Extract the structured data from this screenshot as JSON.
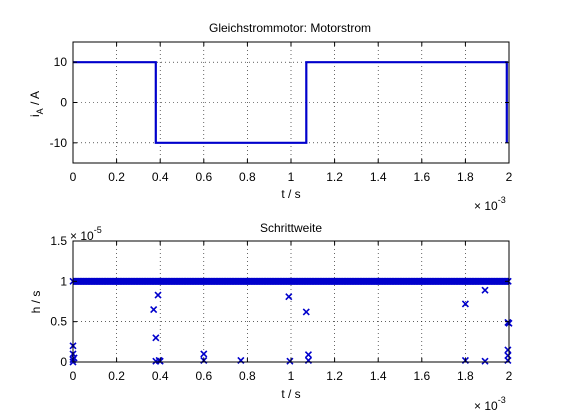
{
  "chart_data": [
    {
      "type": "line",
      "title": "Gleichstrommotor: Motorstrom",
      "ylabel_main": "i",
      "ylabel_sub": "A",
      "ylabel_rest": " / A",
      "xlabel": "t / s",
      "x_exponent_base": "× 10",
      "x_exponent_power": "-3",
      "xlim": [
        0,
        2
      ],
      "ylim": [
        -15,
        15
      ],
      "xticks": [
        "0",
        "0.2",
        "0.4",
        "0.6",
        "0.8",
        "1",
        "1.2",
        "1.4",
        "1.6",
        "1.8",
        "2"
      ],
      "yticks": [
        "10",
        "0",
        "-10"
      ],
      "grid": true,
      "color": "#0000cc",
      "series": [
        {
          "x": [
            0,
            0.38,
            0.38,
            1.07,
            1.07,
            1.99,
            1.99
          ],
          "y": [
            10,
            10,
            -10,
            -10,
            10,
            10,
            -10
          ]
        }
      ]
    },
    {
      "type": "scatter",
      "title": "Schrittweite",
      "ylabel": "h / s",
      "y_exponent_base": "× 10",
      "y_exponent_power": "-5",
      "xlabel": "t / s",
      "x_exponent_base": "× 10",
      "x_exponent_power": "-3",
      "xlim": [
        0,
        2
      ],
      "ylim": [
        0,
        1.5
      ],
      "xticks": [
        "0",
        "0.2",
        "0.4",
        "0.6",
        "0.8",
        "1",
        "1.2",
        "1.4",
        "1.6",
        "1.8",
        "2"
      ],
      "yticks": [
        "1.5",
        "1",
        "0.5",
        "0"
      ],
      "grid": true,
      "marker": "x",
      "color": "#0000cc",
      "dense_band": {
        "x_start": 0.0,
        "x_end": 2.0,
        "y": 1.0
      },
      "points": [
        {
          "x": 0.0,
          "y": 0.0
        },
        {
          "x": 0.0,
          "y": 0.03
        },
        {
          "x": 0.0,
          "y": 0.1
        },
        {
          "x": 0.0,
          "y": 0.2
        },
        {
          "x": 0.005,
          "y": 0.05
        },
        {
          "x": 0.37,
          "y": 0.65
        },
        {
          "x": 0.38,
          "y": 0.3
        },
        {
          "x": 0.38,
          "y": 0.01
        },
        {
          "x": 0.39,
          "y": 0.83
        },
        {
          "x": 0.395,
          "y": 0.02
        },
        {
          "x": 0.4,
          "y": 0.01
        },
        {
          "x": 0.6,
          "y": 0.1
        },
        {
          "x": 0.6,
          "y": 0.02
        },
        {
          "x": 0.77,
          "y": 0.02
        },
        {
          "x": 0.99,
          "y": 0.81
        },
        {
          "x": 0.995,
          "y": 0.01
        },
        {
          "x": 1.07,
          "y": 0.62
        },
        {
          "x": 1.08,
          "y": 0.09
        },
        {
          "x": 1.08,
          "y": 0.02
        },
        {
          "x": 1.8,
          "y": 0.72
        },
        {
          "x": 1.8,
          "y": 0.02
        },
        {
          "x": 1.89,
          "y": 0.89
        },
        {
          "x": 1.89,
          "y": 0.01
        },
        {
          "x": 1.995,
          "y": 0.49
        },
        {
          "x": 2.0,
          "y": 0.48
        },
        {
          "x": 1.995,
          "y": 0.15
        },
        {
          "x": 1.995,
          "y": 0.08
        },
        {
          "x": 1.995,
          "y": 0.02
        }
      ]
    }
  ]
}
